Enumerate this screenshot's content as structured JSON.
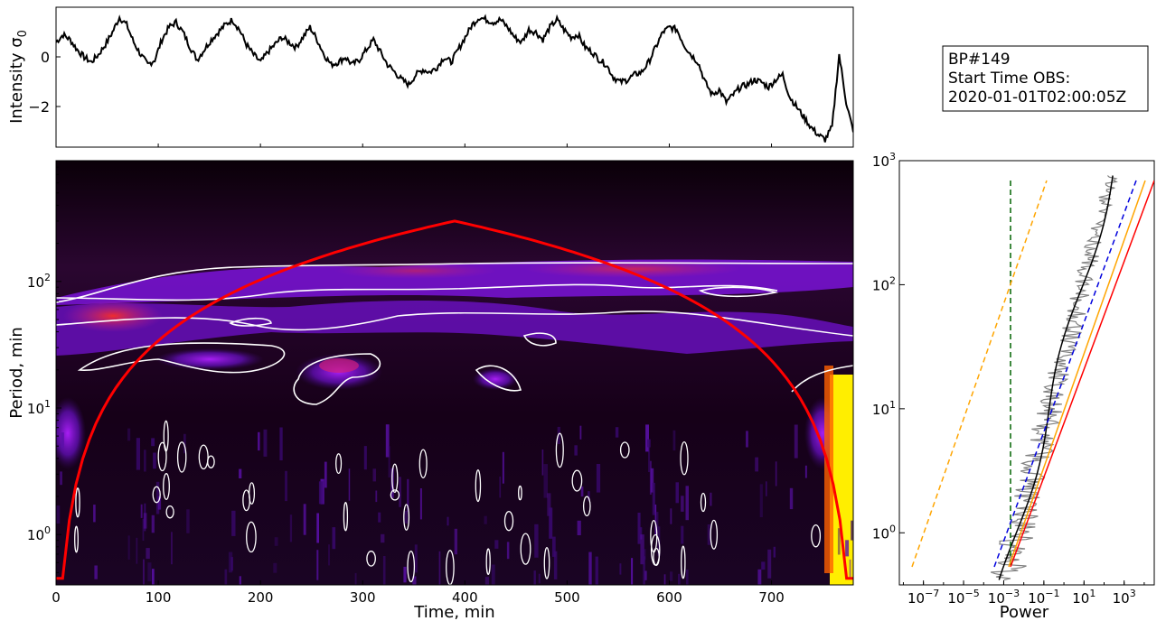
{
  "chart_data": [
    {
      "type": "line",
      "ylabel": "Intensity σ₀",
      "yticks": [
        0,
        -2
      ],
      "ylim": [
        -3.6,
        2.0
      ],
      "xlim": [
        0,
        780
      ],
      "series_description": "Normalized intensity light curve vs time (min)",
      "y": [
        0.6,
        0.9,
        0.7,
        0.3,
        0.0,
        -0.2,
        0.1,
        0.5,
        1.0,
        1.6,
        1.3,
        0.6,
        0.1,
        -0.3,
        -0.1,
        0.7,
        1.2,
        1.4,
        1.0,
        0.4,
        -0.1,
        0.3,
        0.7,
        1.0,
        1.3,
        1.5,
        1.1,
        0.5,
        0.1,
        -0.2,
        0.2,
        0.5,
        0.8,
        0.6,
        0.4,
        0.8,
        1.2,
        0.7,
        0.1,
        -0.3,
        -0.2,
        0.0,
        -0.3,
        -0.1,
        0.3,
        0.7,
        0.2,
        -0.3,
        -0.6,
        -0.9,
        -1.1,
        -0.7,
        -0.5,
        -0.6,
        -0.4,
        0.0,
        -0.2,
        0.3,
        0.8,
        1.3,
        1.6,
        1.5,
        1.4,
        1.5,
        1.2,
        0.8,
        0.6,
        1.1,
        1.0,
        0.7,
        1.2,
        1.5,
        1.1,
        0.8,
        0.9,
        0.4,
        0.2,
        -0.1,
        -0.3,
        -0.8,
        -1.0,
        -0.9,
        -0.7,
        -0.6,
        -0.2,
        0.4,
        1.0,
        1.2,
        1.1,
        0.5,
        0.1,
        -0.2,
        -1.0,
        -1.5,
        -1.3,
        -1.8,
        -1.5,
        -1.2,
        -1.1,
        -0.9,
        -1.0,
        -1.2,
        -0.9,
        -0.7,
        -1.6,
        -2.0,
        -2.4,
        -2.8,
        -3.1,
        -3.3,
        -2.8,
        0.1,
        -1.8,
        -3.0
      ]
    },
    {
      "type": "heatmap",
      "title": "",
      "xlabel": "Time, min",
      "ylabel": "Period, min",
      "xticks": [
        0,
        100,
        200,
        300,
        400,
        500,
        600,
        700
      ],
      "yticks": [
        "10^0",
        "10^1",
        "10^2"
      ],
      "xlim": [
        0,
        780
      ],
      "ylim": [
        0.4,
        900
      ],
      "y_scale": "log",
      "colormap": "gnuplot (black-purple-red-yellow)",
      "contours": "white significance contours",
      "cone_of_influence": {
        "color": "#ff0000",
        "peak_x": 390,
        "peak_y": 300
      },
      "bands": [
        {
          "period": 100,
          "time_range": [
            0,
            780
          ],
          "strength": "high"
        },
        {
          "period": 45,
          "time_range": [
            0,
            780
          ],
          "strength": "medium"
        },
        {
          "period": 20,
          "time_range": [
            260,
            330
          ],
          "strength": "medium"
        },
        {
          "period": 12,
          "time_range": [
            750,
            780
          ],
          "strength": "very high (yellow)"
        }
      ]
    },
    {
      "type": "line",
      "xlabel": "Power",
      "ylabel": "",
      "x_scale": "log",
      "y_scale": "log",
      "xticks": [
        "10^-7",
        "10^-5",
        "10^-3",
        "10^-1",
        "10^1",
        "10^3"
      ],
      "yticks": [
        "10^0",
        "10^1",
        "10^2",
        "10^3"
      ],
      "xlim_exp": [
        -8.2,
        4.5
      ],
      "ylim_exp": [
        -0.42,
        3.0
      ],
      "series": [
        {
          "color": "#808080",
          "style": "solid",
          "description": "Fourier power spectrum"
        },
        {
          "color": "#000000",
          "style": "solid",
          "description": "global wavelet spectrum"
        },
        {
          "color": "#ff0000",
          "style": "solid",
          "description": "fit"
        },
        {
          "color": "#ffa500",
          "style": "solid",
          "description": "confidence level"
        },
        {
          "color": "#ffa500",
          "style": "dashed",
          "description": "noise model"
        },
        {
          "color": "#0000dd",
          "style": "dashed",
          "description": "power-law fit"
        },
        {
          "color": "#006400",
          "style": "dashed",
          "description": "white-noise level"
        }
      ]
    }
  ],
  "info_box": {
    "line1": "BP#149",
    "line2": "Start Time OBS:",
    "line3": "2020-01-01T02:00:05Z"
  },
  "labels": {
    "ts_ylabel_main": "Intensity σ",
    "ts_ylabel_sub": "0",
    "ts_tick_0": "0",
    "ts_tick_m2": "−2",
    "wv_xlabel": "Time, min",
    "wv_ylabel": "Period, min",
    "ps_xlabel": "Power"
  }
}
